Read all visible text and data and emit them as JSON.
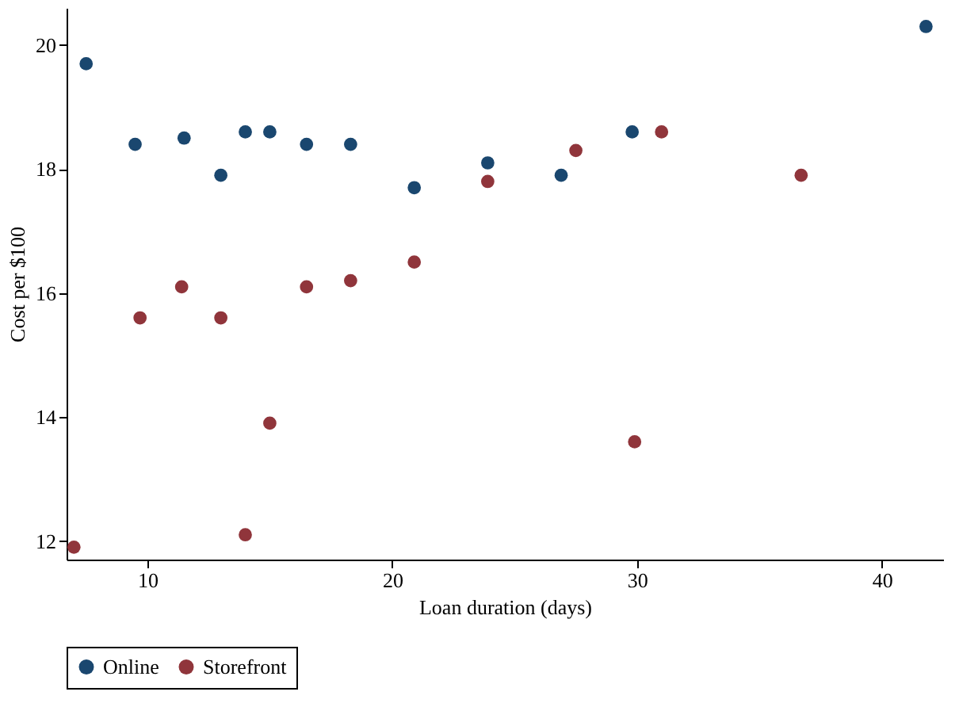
{
  "chart_data": {
    "type": "scatter",
    "xlabel": "Loan duration (days)",
    "ylabel": "Cost per $100",
    "xlim": [
      6.7,
      42.5
    ],
    "ylim": [
      11.7,
      20.6
    ],
    "xticks": [
      10,
      20,
      30,
      40
    ],
    "yticks": [
      12,
      14,
      16,
      18,
      20
    ],
    "grid": false,
    "legend": "bottom",
    "marker": "circle",
    "series": [
      {
        "name": "Online",
        "color": "#1a476f",
        "x": [
          7.5,
          9.5,
          11.5,
          13.0,
          14.0,
          15.0,
          16.5,
          18.3,
          20.9,
          23.9,
          26.9,
          29.8,
          41.8
        ],
        "values": [
          19.7,
          18.4,
          18.5,
          17.9,
          18.6,
          18.6,
          18.4,
          18.4,
          17.7,
          18.1,
          17.9,
          18.6,
          20.3
        ]
      },
      {
        "name": "Storefront",
        "color": "#90353b",
        "x": [
          7.0,
          9.7,
          11.4,
          13.0,
          14.0,
          15.0,
          16.5,
          18.3,
          20.9,
          23.9,
          27.5,
          29.9,
          31.0,
          36.7
        ],
        "values": [
          11.9,
          15.6,
          16.1,
          15.6,
          12.1,
          13.9,
          16.1,
          16.2,
          16.5,
          17.8,
          18.3,
          13.6,
          18.6,
          17.9
        ]
      }
    ]
  }
}
